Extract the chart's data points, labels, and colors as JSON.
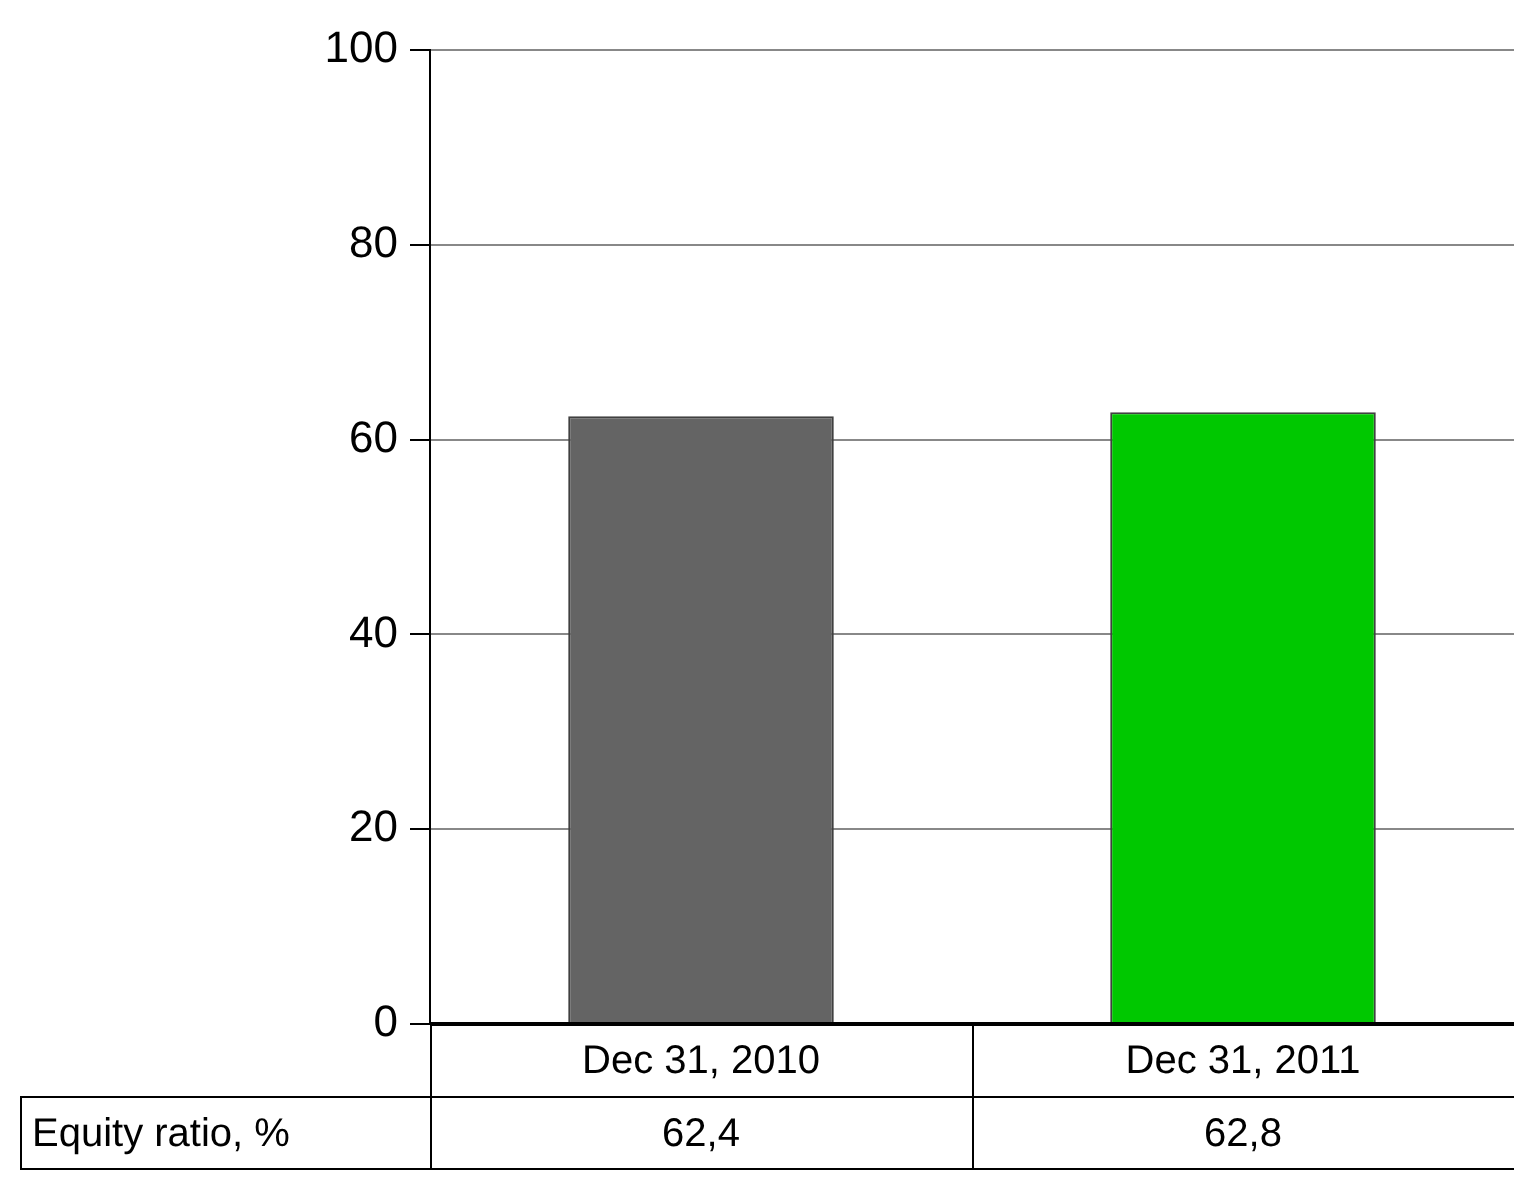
{
  "chart_data": {
    "type": "bar",
    "categories": [
      "Dec 31, 2010",
      "Dec 31, 2011"
    ],
    "series": [
      {
        "name": "Equity ratio, %",
        "colors": [
          "#646464",
          "#00c800"
        ],
        "values": [
          62.4,
          62.8
        ],
        "value_labels": [
          "62,4",
          "62,8"
        ]
      }
    ],
    "ylim": [
      0,
      100
    ],
    "yticks": [
      0,
      20,
      40,
      60,
      80,
      100
    ],
    "grid": "y",
    "legend": false
  }
}
